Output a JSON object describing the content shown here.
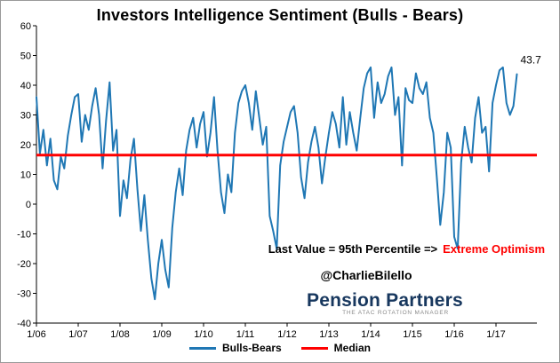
{
  "title": "Investors Intelligence Sentiment (Bulls - Bears)",
  "annotations": {
    "last_value_label": "43.7",
    "percentile_text": "Last Value = 95th Percentile =>",
    "extreme_text": "Extreme Optimism",
    "credit": "@CharlieBilello",
    "logo_text": "Pension Partners",
    "logo_tagline": "THE ATAC ROTATION MANAGER"
  },
  "colors": {
    "line": "#1F77B4",
    "median": "#FF0000",
    "extreme": "#FF0000",
    "logo": "#17375E",
    "axis": "#000000"
  },
  "legend": [
    {
      "label": "Bulls-Bears",
      "color": "#1F77B4"
    },
    {
      "label": "Median",
      "color": "#FF0000"
    }
  ],
  "chart_data": {
    "type": "line",
    "title": "Investors Intelligence Sentiment (Bulls - Bears)",
    "xlabel": "",
    "ylabel": "",
    "ylim": [
      -40,
      60
    ],
    "y_ticks": [
      60,
      50,
      40,
      30,
      20,
      10,
      0,
      -10,
      -20,
      -30,
      -40
    ],
    "x_tick_labels": [
      "1/06",
      "1/07",
      "1/08",
      "1/09",
      "1/10",
      "1/11",
      "1/12",
      "1/13",
      "1/14",
      "1/15",
      "1/16",
      "1/17"
    ],
    "x_start_year": 2006,
    "points_per_year": 12,
    "grid": false,
    "legend_position": "bottom",
    "median_value": 16.5,
    "last_value": 43.7,
    "series": [
      {
        "name": "Bulls-Bears",
        "values": [
          36,
          17,
          25,
          13,
          22,
          8,
          5,
          16,
          12,
          23,
          30,
          36,
          37,
          21,
          30,
          25,
          33,
          39,
          30,
          12,
          28,
          41,
          18,
          25,
          -4,
          8,
          2,
          15,
          22,
          5,
          -9,
          3,
          -12,
          -25,
          -32,
          -20,
          -12,
          -22,
          -28,
          -8,
          4,
          12,
          3,
          18,
          25,
          29,
          19,
          27,
          31,
          16,
          24,
          36,
          18,
          4,
          -3,
          10,
          4,
          24,
          34,
          38,
          40,
          34,
          25,
          38,
          29,
          20,
          26,
          -4,
          -9,
          -15,
          13,
          21,
          26,
          31,
          33,
          24,
          9,
          2,
          14,
          21,
          26,
          19,
          7,
          16,
          24,
          31,
          27,
          19,
          36,
          20,
          31,
          24,
          18,
          29,
          39,
          44,
          46,
          29,
          41,
          34,
          37,
          43,
          46,
          30,
          36,
          13,
          39,
          35,
          34,
          44,
          39,
          37,
          41,
          29,
          24,
          9,
          -7,
          4,
          24,
          19,
          -11,
          -15,
          14,
          26,
          19,
          14,
          29,
          36,
          24,
          26,
          11,
          34,
          40,
          45,
          46,
          34,
          30,
          33,
          43.7
        ]
      },
      {
        "name": "Median",
        "values": [
          16.5
        ]
      }
    ]
  }
}
